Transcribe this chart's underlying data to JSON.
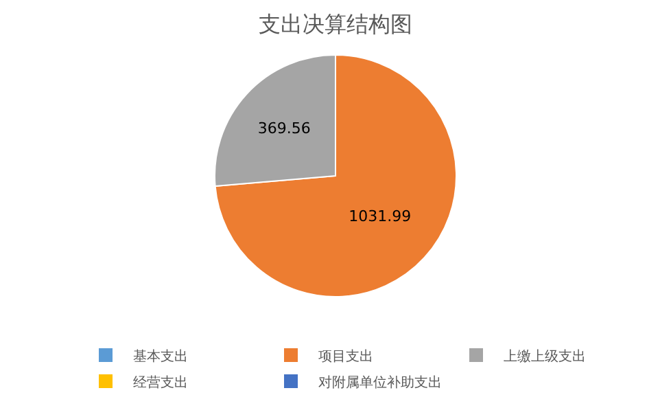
{
  "chart_data": {
    "type": "pie",
    "title": "支出决算结构图",
    "categories": [
      "基本支出",
      "项目支出",
      "上缴上级支出",
      "经营支出",
      "对附属单位补助支出"
    ],
    "values": [
      0,
      1031.99,
      369.56,
      0,
      0
    ],
    "colors": [
      "#5b9bd5",
      "#ed7d31",
      "#a5a5a5",
      "#ffc000",
      "#4472c4"
    ],
    "value_labels": [
      null,
      "1031.99",
      "369.56",
      null,
      null
    ],
    "legend": "bottom"
  }
}
